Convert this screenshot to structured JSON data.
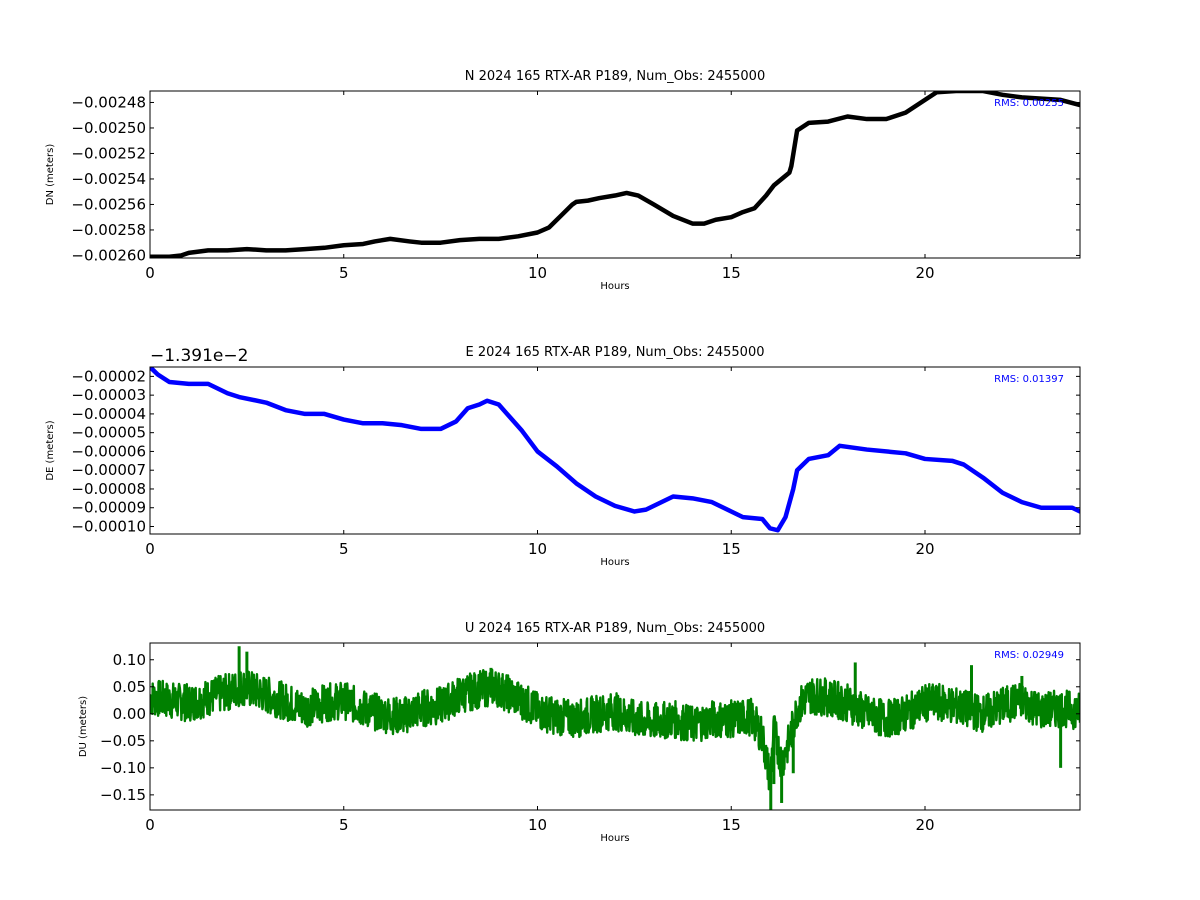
{
  "chart_data": [
    {
      "type": "scatter",
      "title": "N 2024 165 RTX-AR  P189, Num_Obs: 2455000",
      "xlabel": "Hours",
      "ylabel": "DN (meters)",
      "xlim": [
        0,
        24
      ],
      "ylim": [
        -0.002602,
        -0.002471
      ],
      "xticks": [
        0,
        5,
        10,
        15,
        20
      ],
      "xtick_labels": [
        "0",
        "5",
        "10",
        "15",
        "20"
      ],
      "yticks": [
        -0.00248,
        -0.0025,
        -0.00252,
        -0.00254,
        -0.00256,
        -0.00258,
        -0.0026
      ],
      "ytick_labels": [
        "−0.00248",
        "−0.00250",
        "−0.00252",
        "−0.00254",
        "−0.00256",
        "−0.00258",
        "−0.00260"
      ],
      "offset_label": "",
      "rms_label": "RMS:  0.00255",
      "color": "#000000",
      "grid": false,
      "series": [
        {
          "x": [
            0,
            0.5,
            0.8,
            1.0,
            1.5,
            2.0,
            2.5,
            3.0,
            3.5,
            4.0,
            4.5,
            5.0,
            5.5,
            5.8,
            6.2,
            6.7,
            7.0,
            7.5,
            8.0,
            8.5,
            9.0,
            9.5,
            10.0,
            10.3,
            10.6,
            10.9,
            11.0,
            11.3,
            11.6,
            12.0,
            12.3,
            12.6,
            13.0,
            13.5,
            14.0,
            14.3,
            14.6,
            15.0,
            15.3,
            15.6,
            15.9,
            16.1,
            16.3,
            16.5,
            16.55,
            16.7,
            17.0,
            17.5,
            18.0,
            18.5,
            19.0,
            19.5,
            20.0,
            20.3,
            20.8,
            21.5,
            22.0,
            22.5,
            23.0,
            23.5,
            24.0
          ],
          "y": [
            -0.002601,
            -0.002601,
            -0.0026,
            -0.002598,
            -0.002596,
            -0.002596,
            -0.002595,
            -0.002596,
            -0.002596,
            -0.002595,
            -0.002594,
            -0.002592,
            -0.002591,
            -0.002589,
            -0.002587,
            -0.002589,
            -0.00259,
            -0.00259,
            -0.002588,
            -0.002587,
            -0.002587,
            -0.002585,
            -0.002582,
            -0.002578,
            -0.002569,
            -0.00256,
            -0.002558,
            -0.002557,
            -0.002555,
            -0.002553,
            -0.002551,
            -0.002553,
            -0.00256,
            -0.002569,
            -0.002575,
            -0.002575,
            -0.002572,
            -0.00257,
            -0.002566,
            -0.002563,
            -0.002553,
            -0.002545,
            -0.00254,
            -0.002535,
            -0.00253,
            -0.002502,
            -0.002496,
            -0.002495,
            -0.002491,
            -0.002493,
            -0.002493,
            -0.002488,
            -0.002478,
            -0.002472,
            -0.002471,
            -0.002471,
            -0.002474,
            -0.002476,
            -0.002477,
            -0.002478,
            -0.002482
          ]
        }
      ]
    },
    {
      "type": "scatter",
      "title": "E 2024 165 RTX-AR  P189, Num_Obs: 2455000",
      "xlabel": "Hours",
      "ylabel": "DE (meters)",
      "xlim": [
        0,
        24
      ],
      "ylim": [
        -0.000104,
        -1.5e-05
      ],
      "xticks": [
        0,
        5,
        10,
        15,
        20
      ],
      "xtick_labels": [
        "0",
        "5",
        "10",
        "15",
        "20"
      ],
      "yticks": [
        -2e-05,
        -3e-05,
        -4e-05,
        -5e-05,
        -6e-05,
        -7e-05,
        -8e-05,
        -9e-05,
        -0.0001
      ],
      "ytick_labels": [
        "−0.00002",
        "−0.00003",
        "−0.00004",
        "−0.00005",
        "−0.00006",
        "−0.00007",
        "−0.00008",
        "−0.00009",
        "−0.00010"
      ],
      "offset_label": "−1.391e−2",
      "rms_label": "RMS:  0.01397",
      "color": "#0000ff",
      "grid": false,
      "series": [
        {
          "x": [
            0,
            0.2,
            0.5,
            1.0,
            1.5,
            2.0,
            2.3,
            3.0,
            3.5,
            4.0,
            4.5,
            5.0,
            5.5,
            6.0,
            6.5,
            7.0,
            7.5,
            7.9,
            8.2,
            8.5,
            8.7,
            9.0,
            9.3,
            9.6,
            10.0,
            10.5,
            11.0,
            11.5,
            12.0,
            12.5,
            12.8,
            13.2,
            13.5,
            14.0,
            14.5,
            15.0,
            15.3,
            15.8,
            16.0,
            16.2,
            16.4,
            16.6,
            16.7,
            17.0,
            17.5,
            17.8,
            18.5,
            19.5,
            20.0,
            20.7,
            21.0,
            21.5,
            22.0,
            22.5,
            23.0,
            23.5,
            23.8,
            24.0
          ],
          "y": [
            -1.5e-05,
            -1.9e-05,
            -2.3e-05,
            -2.4e-05,
            -2.4e-05,
            -2.9e-05,
            -3.1e-05,
            -3.4e-05,
            -3.8e-05,
            -4e-05,
            -4e-05,
            -4.3e-05,
            -4.5e-05,
            -4.5e-05,
            -4.6e-05,
            -4.8e-05,
            -4.8e-05,
            -4.4e-05,
            -3.7e-05,
            -3.5e-05,
            -3.3e-05,
            -3.5e-05,
            -4.2e-05,
            -4.9e-05,
            -6e-05,
            -6.8e-05,
            -7.7e-05,
            -8.4e-05,
            -8.9e-05,
            -9.2e-05,
            -9.1e-05,
            -8.7e-05,
            -8.4e-05,
            -8.5e-05,
            -8.7e-05,
            -9.2e-05,
            -9.5e-05,
            -9.6e-05,
            -0.000101,
            -0.000102,
            -9.5e-05,
            -8e-05,
            -7e-05,
            -6.4e-05,
            -6.2e-05,
            -5.7e-05,
            -5.9e-05,
            -6.1e-05,
            -6.4e-05,
            -6.5e-05,
            -6.7e-05,
            -7.4e-05,
            -8.2e-05,
            -8.7e-05,
            -9e-05,
            -9e-05,
            -9e-05,
            -9.2e-05
          ]
        }
      ]
    },
    {
      "type": "scatter",
      "title": "U 2024 165 RTX-AR  P189, Num_Obs: 2455000",
      "xlabel": "Hours",
      "ylabel": "DU (meters)",
      "xlim": [
        0,
        24
      ],
      "ylim": [
        -0.178,
        0.131
      ],
      "xticks": [
        0,
        5,
        10,
        15,
        20
      ],
      "xtick_labels": [
        "0",
        "5",
        "10",
        "15",
        "20"
      ],
      "yticks": [
        0.1,
        0.05,
        0.0,
        -0.05,
        -0.1,
        -0.15
      ],
      "ytick_labels": [
        "0.10",
        "0.05",
        "0.00",
        "−0.05",
        "−0.10",
        "−0.15"
      ],
      "offset_label": "",
      "rms_label": "RMS:  0.02949",
      "color": "#008000",
      "grid": false,
      "series": [
        {
          "x": [
            0,
            0.5,
            1.0,
            1.5,
            2.0,
            2.4,
            2.8,
            3.2,
            3.6,
            4.0,
            4.5,
            5.0,
            5.5,
            6.0,
            6.5,
            7.0,
            7.5,
            8.0,
            8.5,
            8.9,
            9.3,
            9.7,
            10.0,
            10.5,
            11.0,
            11.5,
            12.0,
            12.5,
            13.0,
            13.5,
            14.0,
            14.5,
            15.0,
            15.5,
            15.8,
            16.0,
            16.1,
            16.3,
            16.5,
            16.7,
            17.0,
            17.5,
            18.0,
            18.5,
            19.0,
            19.5,
            20.0,
            20.5,
            21.0,
            21.5,
            22.0,
            22.5,
            23.0,
            23.5,
            24.0
          ],
          "y": [
            0.03,
            0.025,
            0.02,
            0.03,
            0.04,
            0.05,
            0.04,
            0.03,
            0.02,
            0.01,
            0.02,
            0.025,
            0.01,
            0.0,
            -0.005,
            0.01,
            0.015,
            0.035,
            0.045,
            0.05,
            0.035,
            0.02,
            0.005,
            -0.005,
            -0.01,
            0.0,
            0.005,
            -0.01,
            -0.015,
            -0.01,
            -0.02,
            -0.01,
            -0.01,
            -0.005,
            -0.04,
            -0.12,
            -0.03,
            -0.09,
            -0.05,
            0.01,
            0.035,
            0.03,
            0.02,
            0.0,
            -0.01,
            0.0,
            0.02,
            0.02,
            0.01,
            0.0,
            0.015,
            0.025,
            0.005,
            0.01,
            0.005
          ],
          "noise": 0.035,
          "spikes": [
            {
              "x": 2.3,
              "y": 0.125
            },
            {
              "x": 2.5,
              "y": 0.115
            },
            {
              "x": 8.8,
              "y": 0.085
            },
            {
              "x": 16.02,
              "y": -0.178
            },
            {
              "x": 16.1,
              "y": -0.13
            },
            {
              "x": 16.3,
              "y": -0.165
            },
            {
              "x": 16.6,
              "y": -0.11
            },
            {
              "x": 18.2,
              "y": 0.095
            },
            {
              "x": 21.2,
              "y": 0.09
            },
            {
              "x": 22.5,
              "y": 0.07
            },
            {
              "x": 23.5,
              "y": -0.1
            }
          ]
        }
      ]
    }
  ]
}
